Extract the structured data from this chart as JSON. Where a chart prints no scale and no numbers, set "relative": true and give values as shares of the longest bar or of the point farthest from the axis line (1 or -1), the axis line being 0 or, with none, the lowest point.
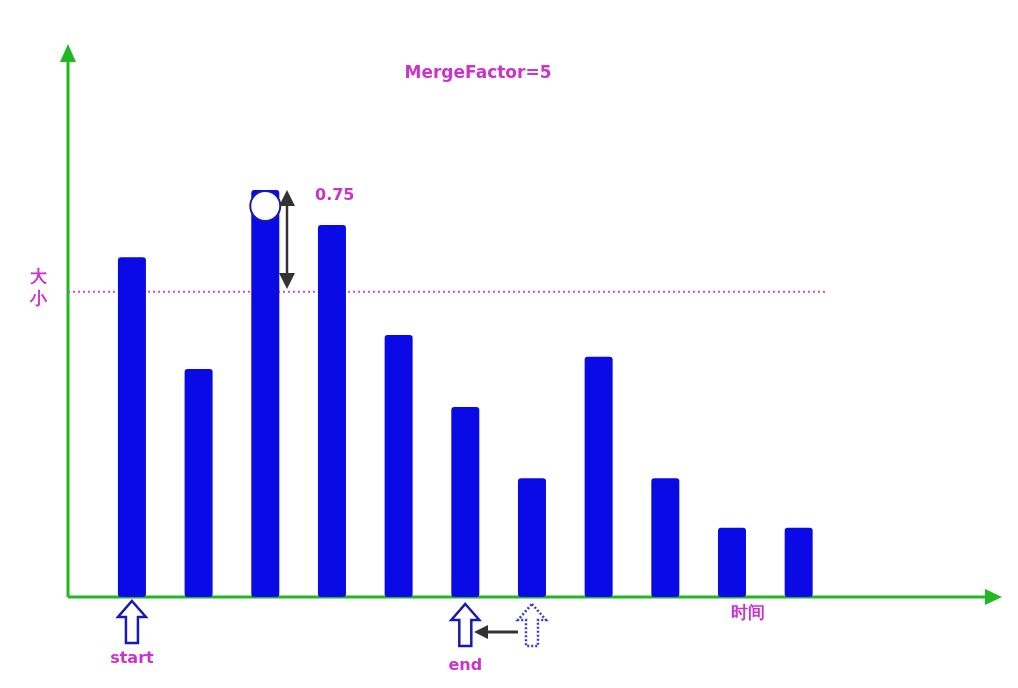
{
  "chart_data": {
    "type": "bar",
    "title": "MergeFactor=5",
    "xlabel": "时间",
    "ylabel": "大小",
    "relative": true,
    "categories": [
      null,
      null,
      null,
      null,
      null,
      null,
      null,
      null,
      null,
      null,
      null
    ],
    "values": [
      0.835,
      0.56,
      1,
      0.914,
      0.644,
      0.467,
      0.292,
      0.59,
      0.292,
      0.17,
      0.17
    ],
    "color": "#0a0ae6",
    "ref_lines": [
      {
        "axis": "y",
        "value": 0.75,
        "color": "#dd44dd",
        "line_style": "dotted"
      }
    ],
    "annotations": [
      "0.75",
      "start",
      "end"
    ]
  }
}
